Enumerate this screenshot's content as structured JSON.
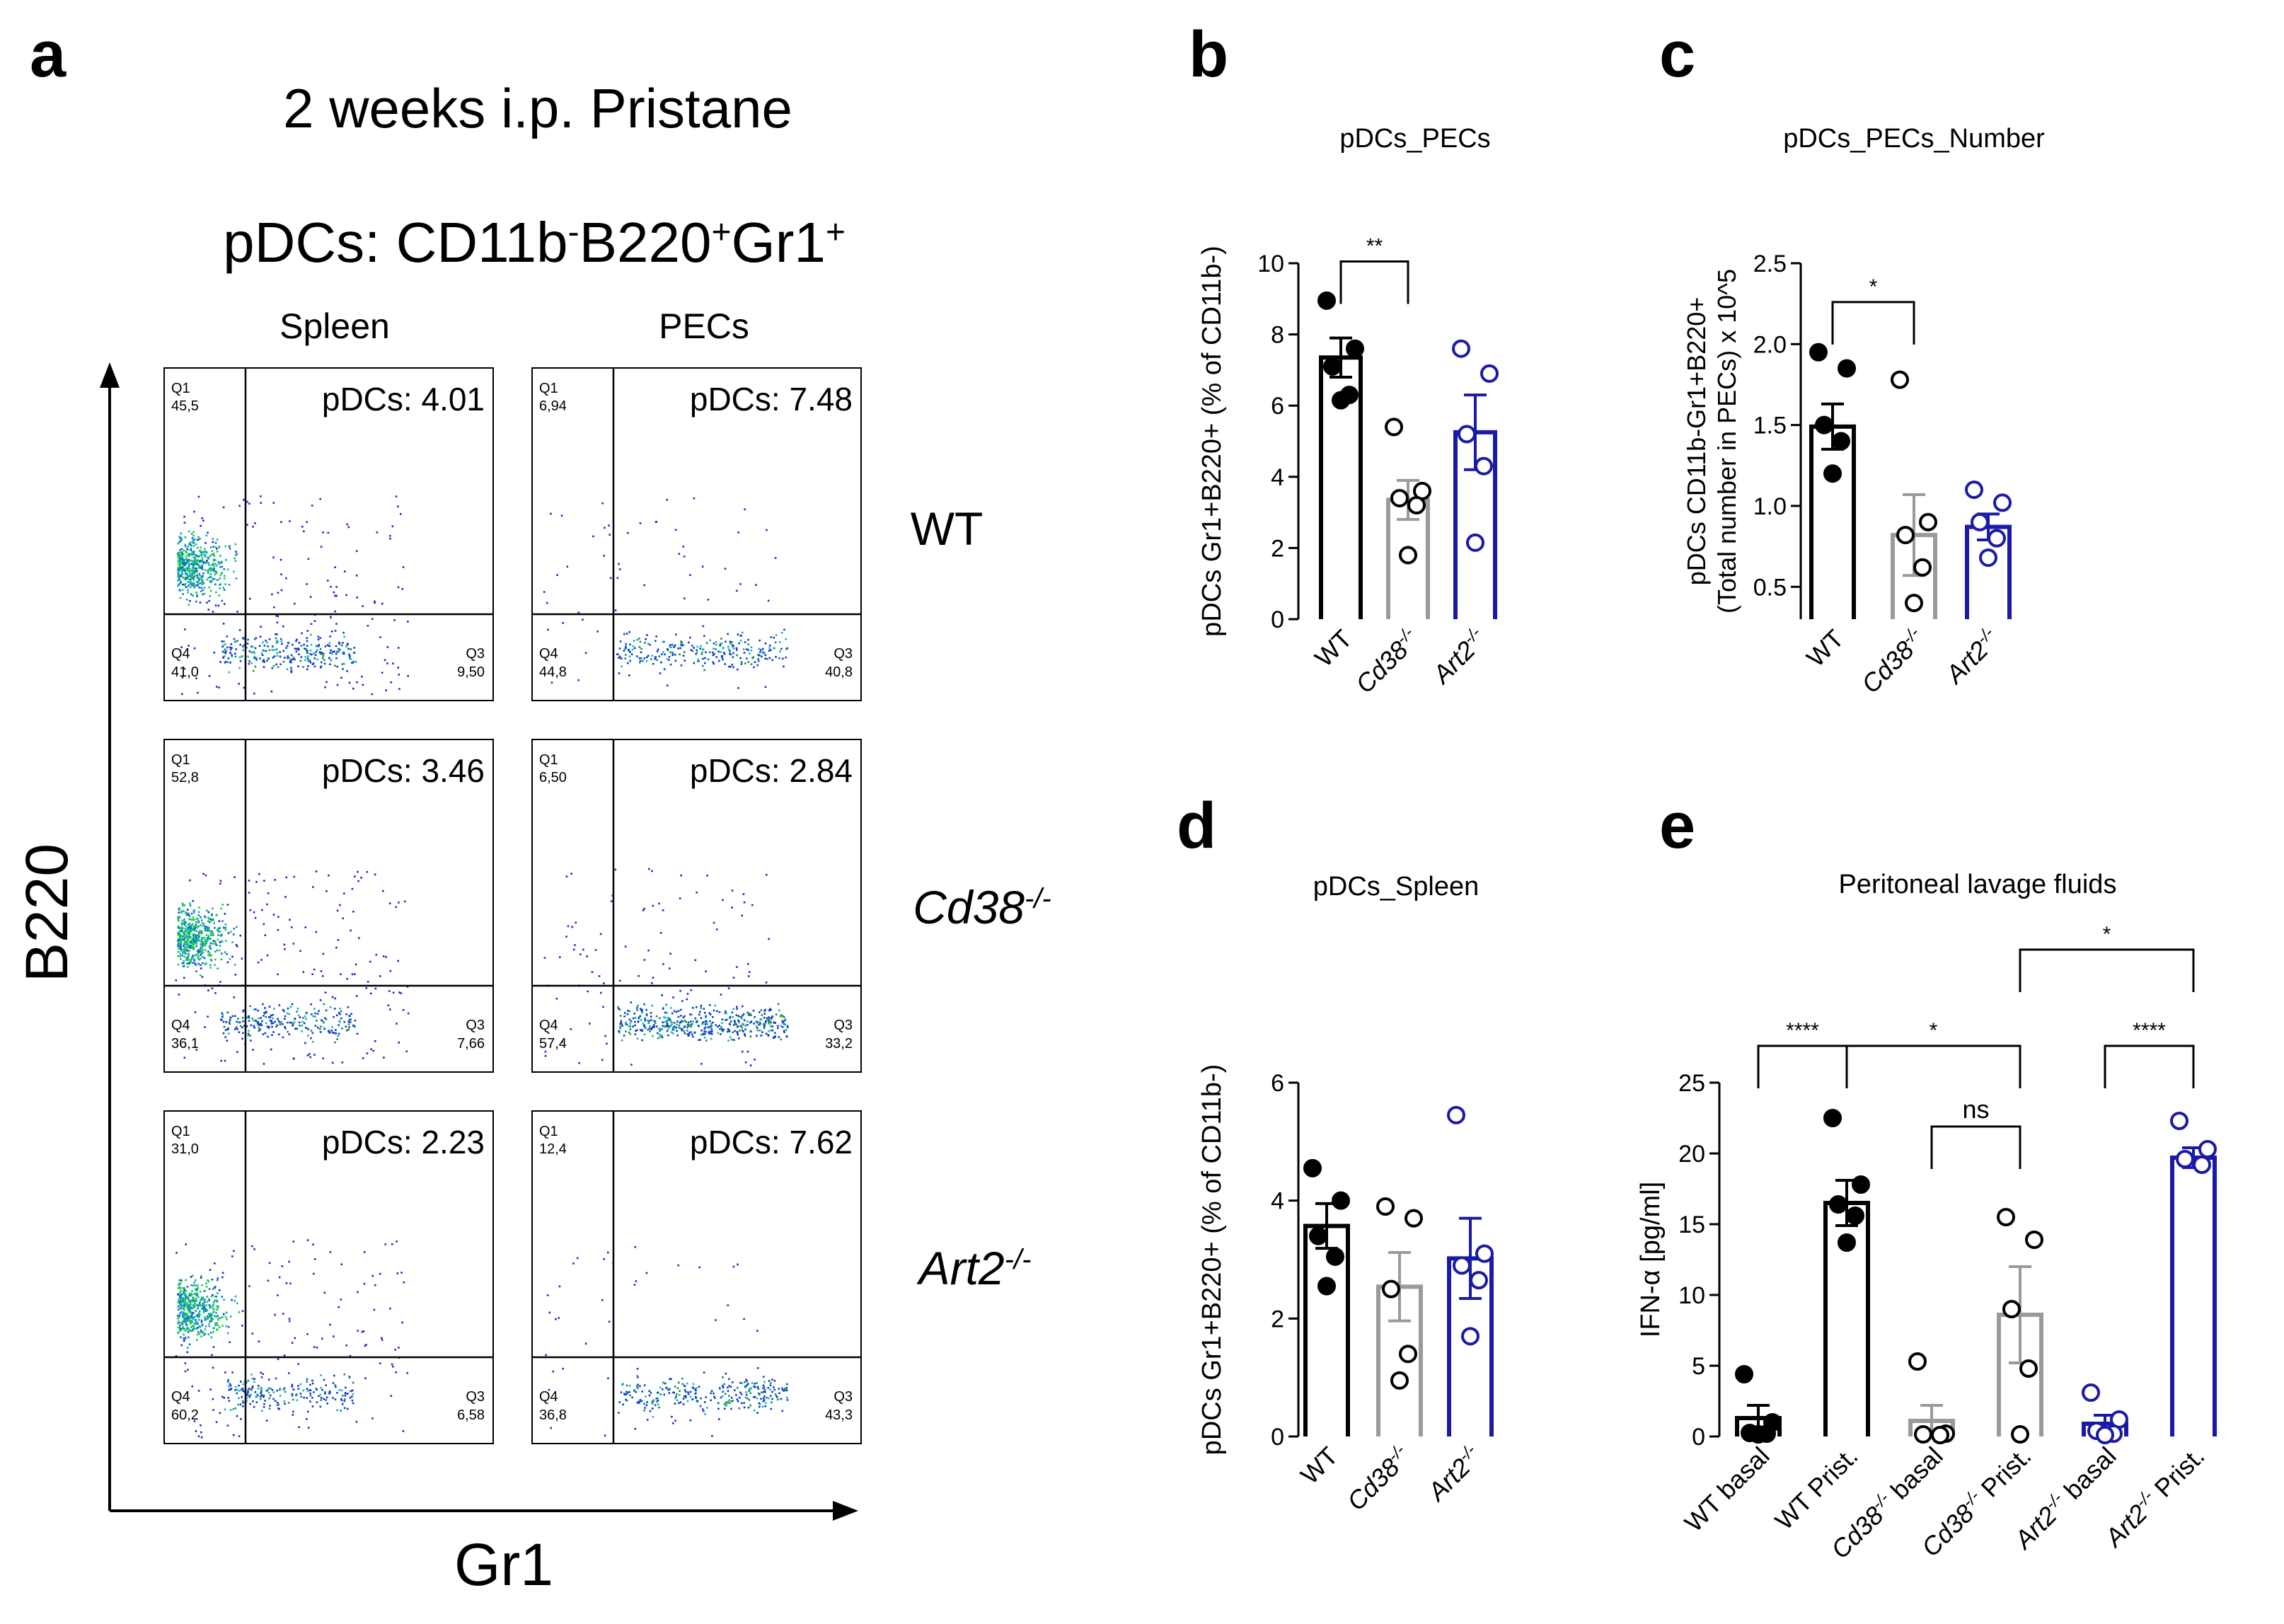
{
  "figure": {
    "panel_letters": [
      "a",
      "b",
      "c",
      "d",
      "e"
    ],
    "colors": {
      "wt": "#000000",
      "cd38": "#9a9a9a",
      "art2": "#1a1aa8",
      "gate_line": "#000000"
    }
  },
  "panel_a": {
    "title": "2 weeks i.p. Pristane",
    "subtitle_parts": [
      "pDCs: CD11b",
      "-",
      "B220",
      "+",
      "Gr1",
      "+"
    ],
    "col_labels": [
      "Spleen",
      "PECs"
    ],
    "row_labels": [
      {
        "base": "WT",
        "sup": ""
      },
      {
        "base": "Cd38",
        "sup": "-/-"
      },
      {
        "base": "Art2",
        "sup": "-/-"
      }
    ],
    "y_axis_label": "B220",
    "x_axis_label": "Gr1",
    "gate_labels": {
      "q1": "Q1",
      "q3": "Q3",
      "q4": "Q4"
    },
    "plots": [
      {
        "tissue": "Spleen",
        "genotype": "WT",
        "pdc_text": "pDCs: 4.01",
        "q1": "45,5",
        "q3": "9,50",
        "q4": "41,0",
        "density": 1.0
      },
      {
        "tissue": "PECs",
        "genotype": "WT",
        "pdc_text": "pDCs: 7.48",
        "q1": "6,94",
        "q3": "40,8",
        "q4": "44,8",
        "density": 0.35
      },
      {
        "tissue": "Spleen",
        "genotype": "Cd38-/-",
        "pdc_text": "pDCs: 3.46",
        "q1": "52,8",
        "q3": "7,66",
        "q4": "36,1",
        "density": 1.0
      },
      {
        "tissue": "PECs",
        "genotype": "Cd38-/-",
        "pdc_text": "pDCs: 2.84",
        "q1": "6,50",
        "q3": "33,2",
        "q4": "57,4",
        "density": 0.6
      },
      {
        "tissue": "Spleen",
        "genotype": "Art2-/-",
        "pdc_text": "pDCs: 2.23",
        "q1": "31,0",
        "q3": "6,58",
        "q4": "60,2",
        "density": 0.9
      },
      {
        "tissue": "PECs",
        "genotype": "Art2-/-",
        "pdc_text": "pDCs: 7.62",
        "q1": "12,4",
        "q3": "43,3",
        "q4": "36,8",
        "density": 0.35
      }
    ]
  },
  "chart_data": [
    {
      "id": "b",
      "type": "bar",
      "title": "pDCs_PECs",
      "ylabel": "pDCs Gr1+B220+ (% of CD11b-)",
      "ylim": [
        0,
        10
      ],
      "yticks": [
        0,
        2,
        4,
        6,
        8,
        10
      ],
      "ytick_labels": [
        "0",
        "2",
        "4",
        "6",
        "8",
        "10"
      ],
      "categories": [
        {
          "base": "WT",
          "sup": "",
          "italic": false
        },
        {
          "base": "Cd38",
          "sup": "-/-",
          "italic": true
        },
        {
          "base": "Art2",
          "sup": "-/-",
          "italic": true
        }
      ],
      "means": [
        7.35,
        3.35,
        5.25
      ],
      "sem": [
        0.55,
        0.55,
        1.05
      ],
      "points": [
        [
          8.95,
          7.6,
          7.1,
          6.3,
          6.15
        ],
        [
          5.4,
          3.6,
          3.4,
          3.2,
          1.8
        ],
        [
          7.6,
          6.9,
          5.2,
          4.3,
          2.15
        ]
      ],
      "colors": [
        "#000000",
        "#9a9a9a",
        "#1a1aa8"
      ],
      "filled": [
        true,
        false,
        false
      ],
      "significance": [
        {
          "from": 0,
          "to": 1,
          "label": "**",
          "level": 10.05
        }
      ]
    },
    {
      "id": "c",
      "type": "bar",
      "title": "pDCs_PECs_Number",
      "ylabel": "pDCs CD11b-Gr1+B220+ (Total number in PECs) x 10^5",
      "ylim": [
        0.3,
        2.5
      ],
      "yticks": [
        0.5,
        1.0,
        1.5,
        2.0,
        2.5
      ],
      "ytick_labels": [
        "0.5",
        "1.0",
        "1.5",
        "2.0",
        "2.5"
      ],
      "categories": [
        {
          "base": "WT",
          "sup": "",
          "italic": false
        },
        {
          "base": "Cd38",
          "sup": "-/-",
          "italic": true
        },
        {
          "base": "Art2",
          "sup": "-/-",
          "italic": true
        }
      ],
      "means": [
        1.49,
        0.82,
        0.87
      ],
      "sem": [
        0.14,
        0.25,
        0.08
      ],
      "points": [
        [
          1.95,
          1.85,
          1.5,
          1.4,
          1.2
        ],
        [
          1.78,
          0.9,
          0.82,
          0.62,
          0.4
        ],
        [
          1.1,
          1.02,
          0.9,
          0.8,
          0.68
        ]
      ],
      "colors": [
        "#000000",
        "#9a9a9a",
        "#1a1aa8"
      ],
      "filled": [
        true,
        false,
        false
      ],
      "significance": [
        {
          "from": 0,
          "to": 1,
          "label": "*",
          "level": 2.26
        }
      ]
    },
    {
      "id": "d",
      "type": "bar",
      "title": "pDCs_Spleen",
      "ylabel": "pDCs Gr1+B220+ (% of CD11b-)",
      "ylim": [
        0,
        6
      ],
      "yticks": [
        0,
        2,
        4,
        6
      ],
      "ytick_labels": [
        "0",
        "2",
        "4",
        "6"
      ],
      "categories": [
        {
          "base": "WT",
          "sup": "",
          "italic": false
        },
        {
          "base": "Cd38",
          "sup": "-/-",
          "italic": true
        },
        {
          "base": "Art2",
          "sup": "-/-",
          "italic": true
        }
      ],
      "means": [
        3.57,
        2.54,
        3.02
      ],
      "sem": [
        0.38,
        0.58,
        0.68
      ],
      "points": [
        [
          4.55,
          4.0,
          3.4,
          3.05,
          2.55
        ],
        [
          3.9,
          3.7,
          2.5,
          1.4,
          0.95
        ],
        [
          5.45,
          3.1,
          2.9,
          2.65,
          1.7
        ]
      ],
      "colors": [
        "#000000",
        "#9a9a9a",
        "#1a1aa8"
      ],
      "filled": [
        true,
        false,
        false
      ],
      "significance": []
    },
    {
      "id": "e",
      "type": "bar",
      "title": "Peritoneal lavage fluids",
      "ylabel": "IFN-α [pg/ml]",
      "ylim": [
        0,
        25
      ],
      "yticks": [
        0,
        5,
        10,
        15,
        20,
        25
      ],
      "ytick_labels": [
        "0",
        "5",
        "10",
        "15",
        "20",
        "25"
      ],
      "categories": [
        {
          "base": "WT basal",
          "sup": "",
          "italic": false
        },
        {
          "base": "WT Prist.",
          "sup": "",
          "italic": false
        },
        {
          "base": "Cd38",
          "sup": "-/-",
          "rest": " basal",
          "italic": true
        },
        {
          "base": "Cd38",
          "sup": "-/-",
          "rest": " Prist.",
          "italic": true
        },
        {
          "base": "Art2",
          "sup": "-/-",
          "rest": " basal",
          "italic": true
        },
        {
          "base": "Art2",
          "sup": "-/-",
          "rest": " Prist.",
          "italic": true
        }
      ],
      "means": [
        1.3,
        16.5,
        1.1,
        8.6,
        0.9,
        19.7
      ],
      "sem": [
        0.9,
        1.6,
        1.1,
        3.4,
        0.6,
        0.7
      ],
      "points": [
        [
          4.4,
          1.0,
          0.25,
          0.2,
          0.15
        ],
        [
          22.5,
          17.8,
          16.4,
          15.6,
          13.7
        ],
        [
          5.3,
          0.2,
          0.15,
          0.1
        ],
        [
          15.5,
          13.9,
          9.0,
          4.8,
          0.15
        ],
        [
          3.1,
          1.2,
          0.4,
          0.2,
          0.1
        ],
        [
          22.3,
          20.3,
          19.6,
          19.2
        ]
      ],
      "colors": [
        "#000000",
        "#000000",
        "#9a9a9a",
        "#9a9a9a",
        "#1a1aa8",
        "#1a1aa8"
      ],
      "filled": [
        true,
        true,
        false,
        false,
        false,
        false
      ],
      "significance": [
        {
          "from": 0,
          "to": 1,
          "label": "****",
          "level": 27.6
        },
        {
          "from": 1,
          "to": 3,
          "label": "*",
          "level": 27.6
        },
        {
          "from": 2,
          "to": 3,
          "label": "ns",
          "level": 21.9
        },
        {
          "from": 4,
          "to": 5,
          "label": "****",
          "level": 27.6
        },
        {
          "from": 3,
          "to": 5,
          "label": "*",
          "level": 34.4
        }
      ]
    }
  ]
}
